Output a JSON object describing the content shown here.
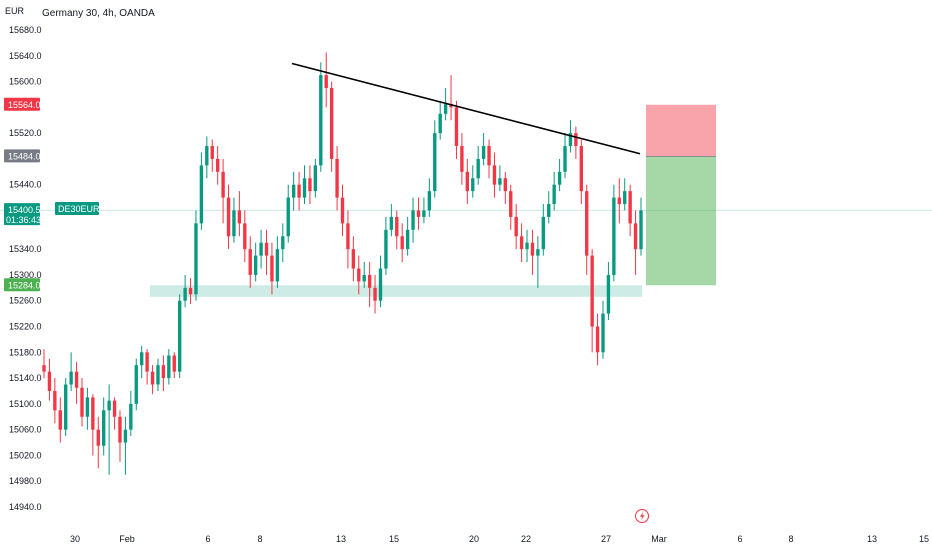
{
  "chart_data": {
    "type": "candlestick",
    "title": "Germany 30, 4h, OANDA",
    "currency_label": "EUR",
    "symbol": "DE30EUR",
    "ylim": [
      14940,
      15700
    ],
    "grid": false,
    "y_ticks": [
      "15680.0",
      "15640.0",
      "15600.0",
      "15520.0",
      "15440.0",
      "15340.0",
      "15300.0",
      "15260.0",
      "15220.0",
      "15180.0",
      "15140.0",
      "15100.0",
      "15060.0",
      "15020.0",
      "14980.0",
      "14940.0"
    ],
    "x_ticks": [
      "30",
      "Feb",
      "6",
      "8",
      "13",
      "15",
      "20",
      "22",
      "27",
      "Mar",
      "6",
      "8",
      "13",
      "15"
    ],
    "price_badges": [
      {
        "value": "15564.0",
        "color": "#f23645"
      },
      {
        "value": "15484.0",
        "color": "#787b86"
      },
      {
        "value": "15400.5",
        "color": "#089981",
        "countdown": "01:36:43"
      },
      {
        "value": "15284.0",
        "color": "#4caf50"
      }
    ],
    "support_zone": {
      "low": 15266,
      "high": 15284
    },
    "trendline": {
      "start_price": 15628,
      "end_price": 15488
    },
    "risk_zone": {
      "low": 15484,
      "high": 15564
    },
    "reward_zone": {
      "low": 15284,
      "high": 15484
    },
    "colors": {
      "up": "#089981",
      "down": "#f23645",
      "wick_up": "#089981",
      "wick_down": "#f23645"
    },
    "candles": [
      [
        15160,
        15150,
        15185,
        15140
      ],
      [
        15150,
        15120,
        15170,
        15105
      ],
      [
        15120,
        15090,
        15140,
        15070
      ],
      [
        15090,
        15060,
        15110,
        15040
      ],
      [
        15060,
        15130,
        15140,
        15050
      ],
      [
        15130,
        15150,
        15180,
        15120
      ],
      [
        15150,
        15125,
        15165,
        15100
      ],
      [
        15125,
        15080,
        15140,
        15065
      ],
      [
        15080,
        15110,
        15125,
        15060
      ],
      [
        15110,
        15060,
        15115,
        15020
      ],
      [
        15060,
        15035,
        15080,
        15000
      ],
      [
        15035,
        15090,
        15110,
        15020
      ],
      [
        15090,
        15105,
        15130,
        14990
      ],
      [
        15105,
        15080,
        15110,
        15060
      ],
      [
        15080,
        15040,
        15090,
        15010
      ],
      [
        15040,
        15060,
        15080,
        14990
      ],
      [
        15060,
        15100,
        15120,
        15050
      ],
      [
        15100,
        15160,
        15170,
        15090
      ],
      [
        15160,
        15180,
        15190,
        15140
      ],
      [
        15180,
        15150,
        15185,
        15130
      ],
      [
        15150,
        15130,
        15160,
        15115
      ],
      [
        15130,
        15160,
        15170,
        15120
      ],
      [
        15160,
        15140,
        15175,
        15120
      ],
      [
        15140,
        15175,
        15185,
        15130
      ],
      [
        15175,
        15150,
        15180,
        15140
      ],
      [
        15150,
        15260,
        15270,
        15140
      ],
      [
        15260,
        15280,
        15300,
        15250
      ],
      [
        15280,
        15270,
        15295,
        15255
      ],
      [
        15270,
        15380,
        15400,
        15260
      ],
      [
        15380,
        15470,
        15490,
        15370
      ],
      [
        15470,
        15500,
        15515,
        15450
      ],
      [
        15500,
        15480,
        15510,
        15460
      ],
      [
        15480,
        15460,
        15500,
        15440
      ],
      [
        15460,
        15420,
        15480,
        15380
      ],
      [
        15420,
        15360,
        15440,
        15340
      ],
      [
        15360,
        15400,
        15420,
        15350
      ],
      [
        15400,
        15380,
        15430,
        15360
      ],
      [
        15380,
        15340,
        15400,
        15320
      ],
      [
        15340,
        15300,
        15360,
        15280
      ],
      [
        15300,
        15330,
        15350,
        15290
      ],
      [
        15330,
        15350,
        15370,
        15310
      ],
      [
        15350,
        15330,
        15370,
        15300
      ],
      [
        15330,
        15290,
        15350,
        15270
      ],
      [
        15290,
        15340,
        15360,
        15280
      ],
      [
        15340,
        15360,
        15380,
        15320
      ],
      [
        15360,
        15420,
        15440,
        15350
      ],
      [
        15420,
        15440,
        15460,
        15400
      ],
      [
        15440,
        15420,
        15460,
        15400
      ],
      [
        15420,
        15450,
        15470,
        15410
      ],
      [
        15450,
        15430,
        15470,
        15410
      ],
      [
        15430,
        15470,
        15480,
        15420
      ],
      [
        15470,
        15610,
        15630,
        15460
      ],
      [
        15610,
        15590,
        15645,
        15560
      ],
      [
        15590,
        15480,
        15600,
        15460
      ],
      [
        15480,
        15420,
        15500,
        15400
      ],
      [
        15420,
        15380,
        15440,
        15360
      ],
      [
        15380,
        15340,
        15400,
        15310
      ],
      [
        15340,
        15310,
        15360,
        15290
      ],
      [
        15310,
        15290,
        15330,
        15270
      ],
      [
        15290,
        15300,
        15320,
        15280
      ],
      [
        15300,
        15280,
        15320,
        15250
      ],
      [
        15280,
        15260,
        15300,
        15240
      ],
      [
        15260,
        15310,
        15330,
        15250
      ],
      [
        15310,
        15370,
        15390,
        15300
      ],
      [
        15370,
        15390,
        15410,
        15360
      ],
      [
        15390,
        15360,
        15400,
        15340
      ],
      [
        15360,
        15340,
        15380,
        15320
      ],
      [
        15340,
        15370,
        15390,
        15330
      ],
      [
        15370,
        15400,
        15420,
        15350
      ],
      [
        15400,
        15390,
        15420,
        15370
      ],
      [
        15390,
        15400,
        15420,
        15380
      ],
      [
        15400,
        15430,
        15450,
        15390
      ],
      [
        15430,
        15520,
        15540,
        15420
      ],
      [
        15520,
        15550,
        15570,
        15510
      ],
      [
        15550,
        15565,
        15590,
        15540
      ],
      [
        15565,
        15560,
        15610,
        15540
      ],
      [
        15560,
        15500,
        15570,
        15480
      ],
      [
        15500,
        15460,
        15520,
        15440
      ],
      [
        15460,
        15430,
        15480,
        15410
      ],
      [
        15430,
        15450,
        15470,
        15420
      ],
      [
        15450,
        15480,
        15500,
        15440
      ],
      [
        15480,
        15500,
        15520,
        15470
      ],
      [
        15500,
        15470,
        15510,
        15450
      ],
      [
        15470,
        15440,
        15490,
        15420
      ],
      [
        15440,
        15450,
        15470,
        15430
      ],
      [
        15450,
        15430,
        15460,
        15410
      ],
      [
        15430,
        15390,
        15440,
        15370
      ],
      [
        15390,
        15360,
        15410,
        15340
      ],
      [
        15360,
        15340,
        15380,
        15320
      ],
      [
        15340,
        15350,
        15370,
        15320
      ],
      [
        15350,
        15330,
        15370,
        15300
      ],
      [
        15330,
        15340,
        15360,
        15280
      ],
      [
        15340,
        15390,
        15410,
        15330
      ],
      [
        15390,
        15410,
        15430,
        15380
      ],
      [
        15410,
        15440,
        15460,
        15400
      ],
      [
        15440,
        15460,
        15480,
        15430
      ],
      [
        15460,
        15500,
        15520,
        15450
      ],
      [
        15500,
        15520,
        15540,
        15490
      ],
      [
        15520,
        15500,
        15530,
        15480
      ],
      [
        15500,
        15430,
        15510,
        15410
      ],
      [
        15430,
        15330,
        15440,
        15300
      ],
      [
        15330,
        15220,
        15340,
        15180
      ],
      [
        15220,
        15180,
        15240,
        15160
      ],
      [
        15180,
        15240,
        15260,
        15170
      ],
      [
        15240,
        15300,
        15320,
        15230
      ],
      [
        15300,
        15420,
        15440,
        15290
      ],
      [
        15420,
        15410,
        15450,
        15380
      ],
      [
        15410,
        15430,
        15450,
        15400
      ],
      [
        15430,
        15380,
        15440,
        15360
      ],
      [
        15380,
        15340,
        15400,
        15300
      ],
      [
        15340,
        15400,
        15420,
        15330
      ]
    ]
  }
}
